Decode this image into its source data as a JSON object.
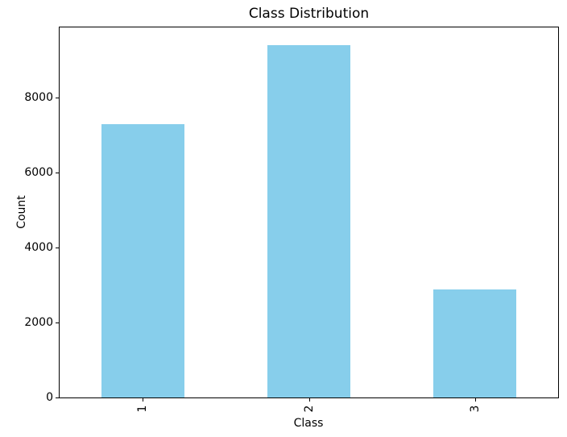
{
  "chart_data": {
    "type": "bar",
    "title": "Class Distribution",
    "xlabel": "Class",
    "ylabel": "Count",
    "categories": [
      "1",
      "2",
      "3"
    ],
    "values": [
      7280,
      9400,
      2880
    ],
    "ylim": [
      0,
      9870
    ],
    "yticks": [
      0,
      2000,
      4000,
      6000,
      8000
    ],
    "xtick_rotation": 90,
    "bar_color": "#87CEEB",
    "bar_width_fraction": 0.5,
    "axis_color": "#000000",
    "text_color": "#000000",
    "background_color": "#ffffff",
    "grid": false,
    "legend": null
  }
}
